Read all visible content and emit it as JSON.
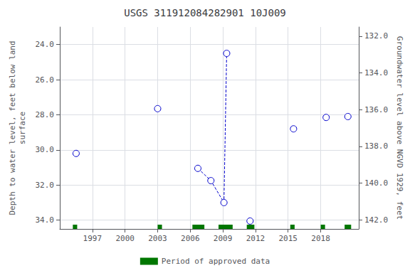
{
  "chart_data": {
    "type": "scatter",
    "title": "USGS 311912084282901 10J009",
    "ylabel": "Depth to water level, feet below land\nsurface",
    "y2label": "Groundwater level above NGVD 1929, feet",
    "xlim": [
      1994.0,
      2021.5
    ],
    "xticks": [
      1997,
      2000,
      2003,
      2006,
      2009,
      2012,
      2015,
      2018
    ],
    "ylim": [
      23.0,
      34.5
    ],
    "yticks": [
      {
        "value": 24.0,
        "label": "24.0"
      },
      {
        "value": 26.0,
        "label": "26.0"
      },
      {
        "value": 28.0,
        "label": "28.0"
      },
      {
        "value": 30.0,
        "label": "30.0"
      },
      {
        "value": 32.0,
        "label": "32.0"
      },
      {
        "value": 34.0,
        "label": "34.0"
      }
    ],
    "y2lim": [
      131.5,
      142.5
    ],
    "y2ticks": [
      {
        "value": 132.0,
        "label": "132.0"
      },
      {
        "value": 134.0,
        "label": "134.0"
      },
      {
        "value": 136.0,
        "label": "136.0"
      },
      {
        "value": 138.0,
        "label": "138.0"
      },
      {
        "value": 140.0,
        "label": "140.0"
      },
      {
        "value": 142.0,
        "label": "142.0"
      }
    ],
    "grid": true,
    "legend": "bottom",
    "series": [
      {
        "type": "scatter",
        "color": "#0000cc",
        "marker": "open circle",
        "x": [
          1995.5,
          2003.0,
          2006.7,
          2007.9,
          2009.1,
          2009.35,
          2011.5,
          2015.5,
          2018.5,
          2020.5
        ],
        "values": [
          30.2,
          27.65,
          31.05,
          31.75,
          33.0,
          24.5,
          34.05,
          28.8,
          28.15,
          28.1
        ]
      },
      {
        "type": "line",
        "color": "#0000cc",
        "line_style": "dashed",
        "x": [
          2006.7,
          2007.9,
          2009.1,
          2009.35
        ],
        "values": [
          31.05,
          31.75,
          33.0,
          24.5
        ]
      },
      {
        "type": "period",
        "name": "Period of approved data",
        "color": "#007700",
        "periods": [
          [
            1995.2,
            1995.6
          ],
          [
            2003.0,
            2003.4
          ],
          [
            2006.2,
            2007.3
          ],
          [
            2008.6,
            2009.9
          ],
          [
            2011.2,
            2011.9
          ],
          [
            2015.2,
            2015.6
          ],
          [
            2018.0,
            2018.4
          ],
          [
            2020.2,
            2020.8
          ]
        ]
      }
    ]
  }
}
